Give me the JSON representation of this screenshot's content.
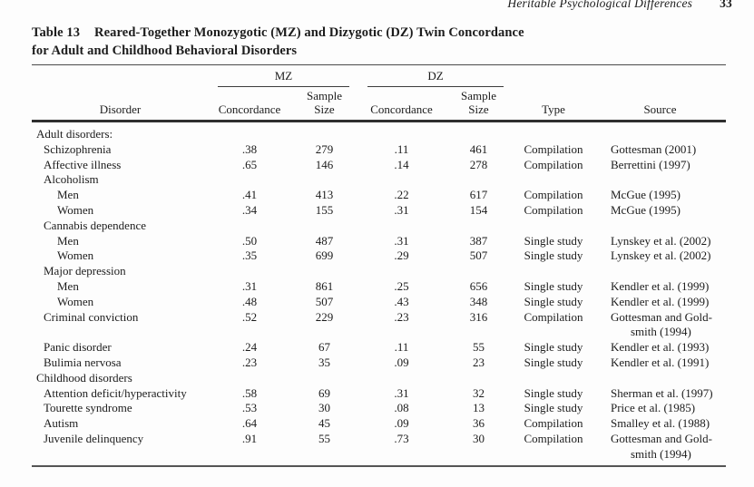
{
  "page": {
    "running_head": "Heritable Psychological Differences",
    "page_number": "33"
  },
  "table": {
    "caption": {
      "label": "Table 13",
      "line1": "Reared-Together Monozygotic (MZ) and Dizygotic (DZ) Twin Concordance",
      "line2": "for Adult and Childhood Behavioral Disorders"
    },
    "group_headers": {
      "mz": "MZ",
      "dz": "DZ"
    },
    "col_headers": {
      "disorder": "Disorder",
      "mz_concordance": "Concordance",
      "dz_concordance": "Concordance",
      "sample_line1": "Sample",
      "sample_line2": "Size",
      "type": "Type",
      "source": "Source"
    },
    "rows": [
      {
        "label": "Adult disorders:",
        "indent": 0,
        "mz_concordance": "",
        "mz_n": "",
        "dz_concordance": "",
        "dz_n": "",
        "type": "",
        "source": ""
      },
      {
        "label": "Schizophrenia",
        "indent": 1,
        "mz_concordance": ".38",
        "mz_n": "279",
        "dz_concordance": ".11",
        "dz_n": "461",
        "type": "Compilation",
        "source": "Gottesman (2001)"
      },
      {
        "label": "Affective illness",
        "indent": 1,
        "mz_concordance": ".65",
        "mz_n": "146",
        "dz_concordance": ".14",
        "dz_n": "278",
        "type": "Compilation",
        "source": "Berrettini (1997)"
      },
      {
        "label": "Alcoholism",
        "indent": 1,
        "mz_concordance": "",
        "mz_n": "",
        "dz_concordance": "",
        "dz_n": "",
        "type": "",
        "source": ""
      },
      {
        "label": "Men",
        "indent": 2,
        "mz_concordance": ".41",
        "mz_n": "413",
        "dz_concordance": ".22",
        "dz_n": "617",
        "type": "Compilation",
        "source": "McGue (1995)"
      },
      {
        "label": "Women",
        "indent": 2,
        "mz_concordance": ".34",
        "mz_n": "155",
        "dz_concordance": ".31",
        "dz_n": "154",
        "type": "Compilation",
        "source": "McGue (1995)"
      },
      {
        "label": "Cannabis dependence",
        "indent": 1,
        "mz_concordance": "",
        "mz_n": "",
        "dz_concordance": "",
        "dz_n": "",
        "type": "",
        "source": ""
      },
      {
        "label": "Men",
        "indent": 2,
        "mz_concordance": ".50",
        "mz_n": "487",
        "dz_concordance": ".31",
        "dz_n": "387",
        "type": "Single study",
        "source": "Lynskey et al. (2002)"
      },
      {
        "label": "Women",
        "indent": 2,
        "mz_concordance": ".35",
        "mz_n": "699",
        "dz_concordance": ".29",
        "dz_n": "507",
        "type": "Single study",
        "source": "Lynskey et al. (2002)"
      },
      {
        "label": "Major depression",
        "indent": 1,
        "mz_concordance": "",
        "mz_n": "",
        "dz_concordance": "",
        "dz_n": "",
        "type": "",
        "source": ""
      },
      {
        "label": "Men",
        "indent": 2,
        "mz_concordance": ".31",
        "mz_n": "861",
        "dz_concordance": ".25",
        "dz_n": "656",
        "type": "Single study",
        "source": "Kendler et al. (1999)"
      },
      {
        "label": "Women",
        "indent": 2,
        "mz_concordance": ".48",
        "mz_n": "507",
        "dz_concordance": ".43",
        "dz_n": "348",
        "type": "Single study",
        "source": "Kendler et al. (1999)"
      },
      {
        "label": "Criminal conviction",
        "indent": 1,
        "mz_concordance": ".52",
        "mz_n": "229",
        "dz_concordance": ".23",
        "dz_n": "316",
        "type": "Compilation",
        "source": "Gottesman and Gold-",
        "source_line2": "smith (1994)"
      },
      {
        "label": "Panic disorder",
        "indent": 1,
        "mz_concordance": ".24",
        "mz_n": "67",
        "dz_concordance": ".11",
        "dz_n": "55",
        "type": "Single study",
        "source": "Kendler et al. (1993)"
      },
      {
        "label": "Bulimia nervosa",
        "indent": 1,
        "mz_concordance": ".23",
        "mz_n": "35",
        "dz_concordance": ".09",
        "dz_n": "23",
        "type": "Single study",
        "source": "Kendler et al. (1991)"
      },
      {
        "label": "Childhood disorders",
        "indent": 0,
        "mz_concordance": "",
        "mz_n": "",
        "dz_concordance": "",
        "dz_n": "",
        "type": "",
        "source": ""
      },
      {
        "label": "Attention deficit/hyperactivity",
        "indent": 1,
        "mz_concordance": ".58",
        "mz_n": "69",
        "dz_concordance": ".31",
        "dz_n": "32",
        "type": "Single study",
        "source": "Sherman et al. (1997)"
      },
      {
        "label": "Tourette syndrome",
        "indent": 1,
        "mz_concordance": ".53",
        "mz_n": "30",
        "dz_concordance": ".08",
        "dz_n": "13",
        "type": "Single study",
        "source": "Price et al. (1985)"
      },
      {
        "label": "Autism",
        "indent": 1,
        "mz_concordance": ".64",
        "mz_n": "45",
        "dz_concordance": ".09",
        "dz_n": "36",
        "type": "Compilation",
        "source": "Smalley et al. (1988)"
      },
      {
        "label": "Juvenile delinquency",
        "indent": 1,
        "mz_concordance": ".91",
        "mz_n": "55",
        "dz_concordance": ".73",
        "dz_n": "30",
        "type": "Compilation",
        "source": "Gottesman and Gold-",
        "source_line2": "smith (1994)"
      }
    ]
  }
}
